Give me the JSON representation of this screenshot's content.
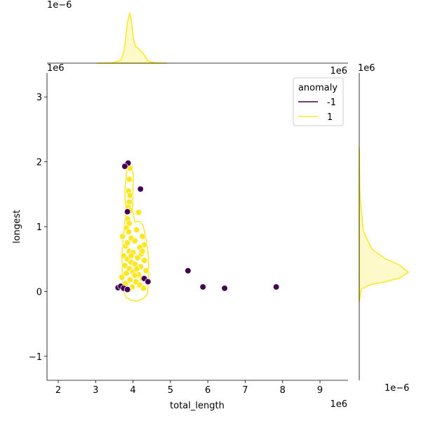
{
  "chart_data": {
    "type": "scatter",
    "title": "",
    "xlabel": "total_length",
    "ylabel": "longest",
    "x_scale_label": "1e6",
    "y_scale_label": "1e6",
    "xlim": [
      1.7,
      9.75
    ],
    "ylim": [
      -1.37,
      3.37
    ],
    "x_ticks": [
      2,
      3,
      4,
      5,
      6,
      7,
      8,
      9
    ],
    "y_ticks": [
      -1,
      0,
      1,
      2,
      3
    ],
    "x_tick_labels": [
      "2",
      "3",
      "4",
      "5",
      "6",
      "7",
      "8",
      "9"
    ],
    "y_tick_labels": [
      "−1",
      "0",
      "1",
      "2",
      "3"
    ],
    "marginal_top_scale_label": "1e−6",
    "marginal_right_scale_label": "1e−6",
    "legend": {
      "title": "anomaly",
      "placement": "top-right",
      "entries": [
        {
          "label": "-1",
          "color": "#440154"
        },
        {
          "label": "1",
          "color": "#fde725"
        }
      ]
    },
    "colors": {
      "anomaly_neg": "#440154",
      "anomaly_pos": "#fde725",
      "edge": "#ffffff"
    },
    "series": [
      {
        "name": "-1",
        "points": [
          [
            3.87,
            1.98
          ],
          [
            3.78,
            1.93
          ],
          [
            4.2,
            1.58
          ],
          [
            3.85,
            1.23
          ],
          [
            3.6,
            0.06
          ],
          [
            3.67,
            0.08
          ],
          [
            3.75,
            0.05
          ],
          [
            3.85,
            0.03
          ],
          [
            4.3,
            0.2
          ],
          [
            4.4,
            0.15
          ],
          [
            5.47,
            0.32
          ],
          [
            5.87,
            0.07
          ],
          [
            6.45,
            0.05
          ],
          [
            7.83,
            0.07
          ]
        ]
      },
      {
        "name": "1",
        "points": [
          [
            3.92,
            1.9
          ],
          [
            3.9,
            1.73
          ],
          [
            3.88,
            1.55
          ],
          [
            3.92,
            1.48
          ],
          [
            3.9,
            1.38
          ],
          [
            3.87,
            1.3
          ],
          [
            3.93,
            1.25
          ],
          [
            4.15,
            1.22
          ],
          [
            3.85,
            1.12
          ],
          [
            3.9,
            1.05
          ],
          [
            3.82,
            0.98
          ],
          [
            3.88,
            0.92
          ],
          [
            4.1,
            0.95
          ],
          [
            4.25,
            0.85
          ],
          [
            3.72,
            0.85
          ],
          [
            3.95,
            0.82
          ],
          [
            4.05,
            0.78
          ],
          [
            4.3,
            0.72
          ],
          [
            3.8,
            0.7
          ],
          [
            4.18,
            0.68
          ],
          [
            3.9,
            0.62
          ],
          [
            4.0,
            0.6
          ],
          [
            4.22,
            0.58
          ],
          [
            3.75,
            0.55
          ],
          [
            4.12,
            0.52
          ],
          [
            3.85,
            0.5
          ],
          [
            4.3,
            0.48
          ],
          [
            3.95,
            0.45
          ],
          [
            4.05,
            0.42
          ],
          [
            3.78,
            0.4
          ],
          [
            4.2,
            0.38
          ],
          [
            3.9,
            0.35
          ],
          [
            4.35,
            0.32
          ],
          [
            4.0,
            0.3
          ],
          [
            3.82,
            0.28
          ],
          [
            4.15,
            0.26
          ],
          [
            3.7,
            0.22
          ],
          [
            4.25,
            0.2
          ],
          [
            3.92,
            0.18
          ],
          [
            4.08,
            0.15
          ],
          [
            3.8,
            0.12
          ],
          [
            4.18,
            0.1
          ],
          [
            3.98,
            0.07
          ],
          [
            4.28,
            0.05
          ],
          [
            3.88,
            0.03
          ],
          [
            4.05,
            0.25
          ],
          [
            3.95,
            0.55
          ],
          [
            4.1,
            0.35
          ],
          [
            3.85,
            0.75
          ],
          [
            4.25,
            0.62
          ]
        ]
      }
    ]
  }
}
